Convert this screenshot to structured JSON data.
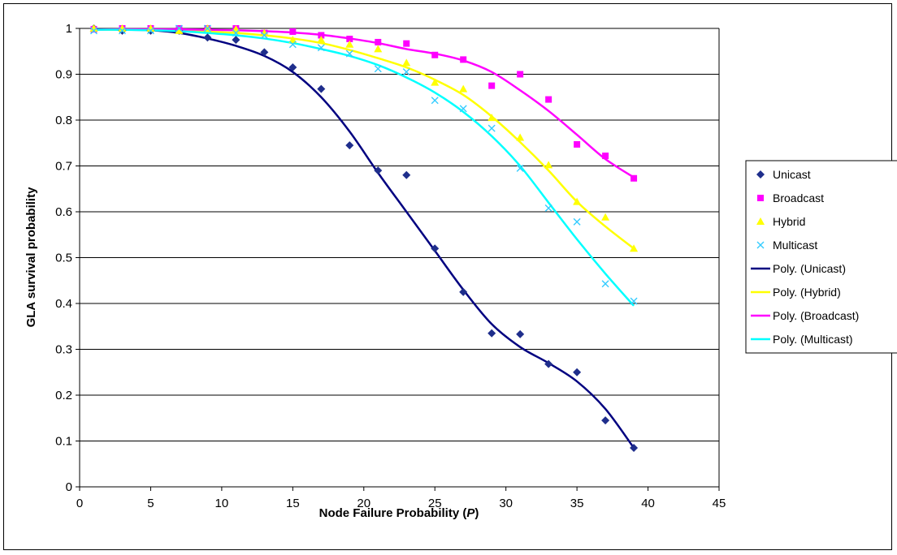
{
  "chart_data": {
    "type": "scatter",
    "title": "",
    "xlabel": "Node Failure Probability (P)",
    "xlabel_main": "Node Failure Probability (",
    "xlabel_var": "P",
    "xlabel_close": ")",
    "ylabel": "GLA survival probability",
    "xlim": [
      0,
      45
    ],
    "ylim": [
      0,
      1
    ],
    "xticks": [
      0,
      5,
      10,
      15,
      20,
      25,
      30,
      35,
      40,
      45
    ],
    "yticks": [
      0,
      0.1,
      0.2,
      0.3,
      0.4,
      0.5,
      0.6,
      0.7,
      0.8,
      0.9,
      1
    ],
    "grid": "horizontal",
    "legend_position": "right",
    "series": [
      {
        "name": "Unicast",
        "marker": "diamond",
        "color": "#1F2E8C",
        "x": [
          1,
          3,
          5,
          7,
          9,
          11,
          13,
          15,
          17,
          19,
          21,
          23,
          25,
          27,
          29,
          31,
          33,
          35,
          37,
          39
        ],
        "y": [
          1.0,
          0.995,
          0.995,
          0.995,
          0.98,
          0.975,
          0.948,
          0.915,
          0.868,
          0.745,
          0.69,
          0.68,
          0.52,
          0.425,
          0.335,
          0.333,
          0.268,
          0.25,
          0.145,
          0.085
        ]
      },
      {
        "name": "Broadcast",
        "marker": "square",
        "color": "#FF00FF",
        "x": [
          1,
          3,
          5,
          7,
          9,
          11,
          13,
          15,
          17,
          19,
          21,
          23,
          25,
          27,
          29,
          31,
          33,
          35,
          37,
          39
        ],
        "y": [
          0.998,
          1.0,
          1.0,
          1.0,
          1.0,
          1.0,
          0.99,
          0.993,
          0.985,
          0.977,
          0.97,
          0.967,
          0.942,
          0.932,
          0.875,
          0.9,
          0.845,
          0.747,
          0.722,
          0.673
        ]
      },
      {
        "name": "Hybrid",
        "marker": "triangle",
        "color": "#FFFF00",
        "x": [
          1,
          3,
          5,
          7,
          9,
          11,
          13,
          15,
          17,
          19,
          21,
          23,
          25,
          27,
          29,
          31,
          33,
          35,
          37,
          39
        ],
        "y": [
          1.0,
          1.0,
          1.0,
          0.995,
          1.0,
          0.998,
          0.99,
          0.975,
          0.975,
          0.965,
          0.955,
          0.925,
          0.882,
          0.868,
          0.805,
          0.762,
          0.702,
          0.622,
          0.588,
          0.52
        ]
      },
      {
        "name": "Multicast",
        "marker": "x",
        "color": "#33CCFF",
        "x": [
          1,
          3,
          5,
          7,
          9,
          11,
          13,
          15,
          17,
          19,
          21,
          23,
          25,
          27,
          29,
          31,
          33,
          35,
          37,
          39
        ],
        "y": [
          0.995,
          0.995,
          0.995,
          1.0,
          1.0,
          0.99,
          0.985,
          0.965,
          0.958,
          0.945,
          0.912,
          0.905,
          0.843,
          0.825,
          0.782,
          0.695,
          0.608,
          0.578,
          0.443,
          0.405
        ]
      }
    ],
    "trendlines": [
      {
        "name": "Poly. (Unicast)",
        "color": "#000080",
        "x": [
          1,
          3,
          5,
          7,
          9,
          11,
          13,
          15,
          17,
          19,
          21,
          23,
          25,
          27,
          29,
          31,
          33,
          35,
          37,
          39
        ],
        "y": [
          0.998,
          0.997,
          0.996,
          0.99,
          0.978,
          0.962,
          0.94,
          0.905,
          0.85,
          0.775,
          0.685,
          0.6,
          0.515,
          0.43,
          0.355,
          0.305,
          0.27,
          0.23,
          0.17,
          0.085
        ]
      },
      {
        "name": "Poly. (Hybrid)",
        "color": "#FFFF00",
        "x": [
          1,
          3,
          5,
          7,
          9,
          11,
          13,
          15,
          17,
          19,
          21,
          23,
          25,
          27,
          29,
          31,
          33,
          35,
          37,
          39
        ],
        "y": [
          0.997,
          0.997,
          0.997,
          0.995,
          0.993,
          0.99,
          0.985,
          0.978,
          0.968,
          0.953,
          0.935,
          0.915,
          0.888,
          0.855,
          0.808,
          0.752,
          0.69,
          0.622,
          0.568,
          0.52
        ]
      },
      {
        "name": "Poly. (Broadcast)",
        "color": "#FF00FF",
        "x": [
          1,
          3,
          5,
          7,
          9,
          11,
          13,
          15,
          17,
          19,
          21,
          23,
          25,
          27,
          29,
          31,
          33,
          35,
          37,
          39
        ],
        "y": [
          0.997,
          0.998,
          0.998,
          0.998,
          0.997,
          0.996,
          0.994,
          0.991,
          0.986,
          0.978,
          0.968,
          0.955,
          0.945,
          0.93,
          0.905,
          0.865,
          0.82,
          0.768,
          0.715,
          0.675
        ]
      },
      {
        "name": "Poly. (Multicast)",
        "color": "#00FFFF",
        "x": [
          1,
          3,
          5,
          7,
          9,
          11,
          13,
          15,
          17,
          19,
          21,
          23,
          25,
          27,
          29,
          31,
          33,
          35,
          37,
          39
        ],
        "y": [
          0.997,
          0.997,
          0.996,
          0.994,
          0.99,
          0.985,
          0.978,
          0.968,
          0.955,
          0.94,
          0.92,
          0.893,
          0.86,
          0.818,
          0.765,
          0.7,
          0.62,
          0.54,
          0.465,
          0.395
        ]
      }
    ]
  }
}
